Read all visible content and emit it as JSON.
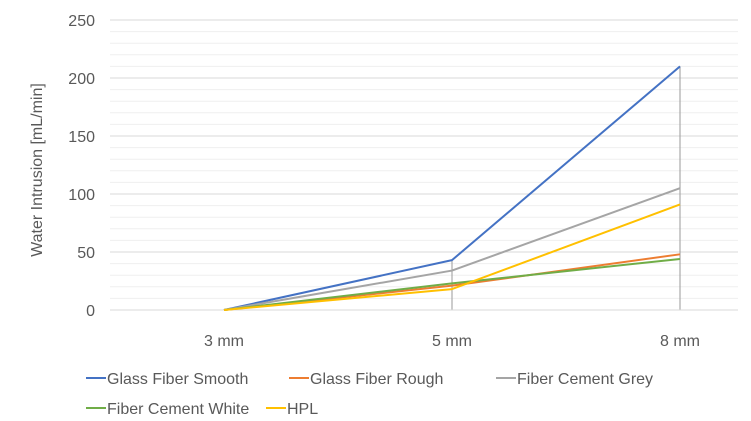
{
  "chart_data": {
    "type": "line",
    "title": "",
    "xlabel": "",
    "ylabel": "Water Intrusion [mL/min]",
    "categories": [
      "3 mm",
      "5 mm",
      "8 mm"
    ],
    "ylim": [
      0,
      250
    ],
    "yticks": [
      0,
      50,
      100,
      150,
      200,
      250
    ],
    "grid": true,
    "legend_position": "bottom",
    "series": [
      {
        "name": "Glass Fiber Smooth",
        "color": "#4472C4",
        "values": [
          0,
          43,
          210
        ]
      },
      {
        "name": "Glass Fiber Rough",
        "color": "#ED7D31",
        "values": [
          0,
          21,
          48
        ]
      },
      {
        "name": "Fiber Cement Grey",
        "color": "#A5A5A5",
        "values": [
          0,
          34,
          105
        ]
      },
      {
        "name": "Fiber Cement White",
        "color": "#70AD47",
        "values": [
          0,
          23,
          44
        ]
      },
      {
        "name": "HPL",
        "color": "#FFC000",
        "values": [
          0,
          18,
          91
        ]
      }
    ]
  }
}
